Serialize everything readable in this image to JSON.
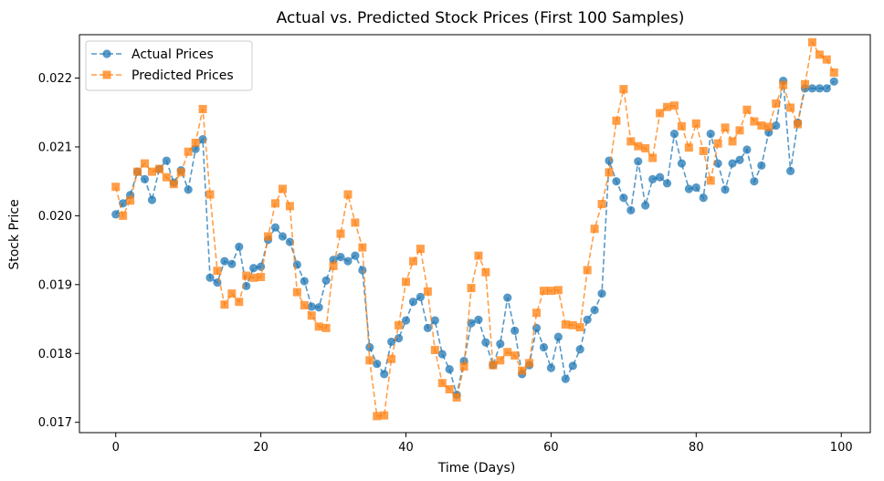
{
  "chart_data": {
    "type": "line",
    "title": "Actual vs. Predicted Stock Prices (First 100 Samples)",
    "xlabel": "Time (Days)",
    "ylabel": "Stock Price",
    "xlim": [
      -5,
      104
    ],
    "ylim": [
      0.01685,
      0.02263
    ],
    "xticks": [
      0,
      20,
      40,
      60,
      80,
      100
    ],
    "yticks": [
      0.017,
      0.018,
      0.019,
      0.02,
      0.021,
      0.022
    ],
    "ytick_labels": [
      "0.017",
      "0.018",
      "0.019",
      "0.020",
      "0.021",
      "0.022"
    ],
    "grid": false,
    "legend_position": "top-left",
    "x": [
      0,
      1,
      2,
      3,
      4,
      5,
      6,
      7,
      8,
      9,
      10,
      11,
      12,
      13,
      14,
      15,
      16,
      17,
      18,
      19,
      20,
      21,
      22,
      23,
      24,
      25,
      26,
      27,
      28,
      29,
      30,
      31,
      32,
      33,
      34,
      35,
      36,
      37,
      38,
      39,
      40,
      41,
      42,
      43,
      44,
      45,
      46,
      47,
      48,
      49,
      50,
      51,
      52,
      53,
      54,
      55,
      56,
      57,
      58,
      59,
      60,
      61,
      62,
      63,
      64,
      65,
      66,
      67,
      68,
      69,
      70,
      71,
      72,
      73,
      74,
      75,
      76,
      77,
      78,
      79,
      80,
      81,
      82,
      83,
      84,
      85,
      86,
      87,
      88,
      89,
      90,
      91,
      92,
      93,
      94,
      95,
      96,
      97,
      98,
      99
    ],
    "series": [
      {
        "name": "Actual Prices",
        "color": "#1f77b4",
        "marker": "circle",
        "values": [
          0.02002,
          0.02018,
          0.0203,
          0.02064,
          0.02053,
          0.02023,
          0.02068,
          0.0208,
          0.02048,
          0.02066,
          0.02038,
          0.02097,
          0.02111,
          0.0191,
          0.01903,
          0.01934,
          0.0193,
          0.01955,
          0.01898,
          0.01924,
          0.01926,
          0.01965,
          0.01983,
          0.0197,
          0.01962,
          0.01929,
          0.01905,
          0.01868,
          0.01867,
          0.01906,
          0.01936,
          0.0194,
          0.01934,
          0.01942,
          0.01921,
          0.01809,
          0.01785,
          0.0177,
          0.01817,
          0.01822,
          0.01848,
          0.01875,
          0.01882,
          0.01837,
          0.01848,
          0.01799,
          0.01777,
          0.0174,
          0.01789,
          0.01844,
          0.01849,
          0.01816,
          0.01783,
          0.01814,
          0.01881,
          0.01833,
          0.0177,
          0.01783,
          0.01837,
          0.01809,
          0.01779,
          0.01824,
          0.01763,
          0.01782,
          0.01806,
          0.01849,
          0.01863,
          0.01887,
          0.0208,
          0.0205,
          0.02026,
          0.02008,
          0.02079,
          0.02015,
          0.02053,
          0.02056,
          0.02047,
          0.02119,
          0.02076,
          0.02039,
          0.02041,
          0.02026,
          0.02119,
          0.02076,
          0.02038,
          0.02076,
          0.02081,
          0.02096,
          0.0205,
          0.02073,
          0.02121,
          0.02131,
          0.02196,
          0.02065,
          0.02135,
          0.02185,
          0.02185,
          0.02185,
          0.02185,
          0.02195
        ]
      },
      {
        "name": "Predicted Prices",
        "color": "#ff7f0e",
        "marker": "square",
        "values": [
          0.02042,
          0.02,
          0.02022,
          0.02064,
          0.02076,
          0.02064,
          0.02068,
          0.02056,
          0.02046,
          0.02063,
          0.02093,
          0.02106,
          0.02155,
          0.02031,
          0.0192,
          0.01871,
          0.01887,
          0.01875,
          0.01913,
          0.0191,
          0.01911,
          0.0197,
          0.02018,
          0.02039,
          0.02014,
          0.01889,
          0.0187,
          0.01855,
          0.01839,
          0.01837,
          0.01927,
          0.01974,
          0.02031,
          0.0199,
          0.01954,
          0.0179,
          0.01709,
          0.0171,
          0.01792,
          0.01841,
          0.01904,
          0.01934,
          0.01952,
          0.0189,
          0.01805,
          0.01757,
          0.01748,
          0.01736,
          0.01781,
          0.01895,
          0.01942,
          0.01918,
          0.01783,
          0.0179,
          0.01802,
          0.01797,
          0.01775,
          0.01786,
          0.01859,
          0.01891,
          0.01891,
          0.01892,
          0.01842,
          0.01841,
          0.01838,
          0.01921,
          0.01981,
          0.02017,
          0.02063,
          0.02138,
          0.02184,
          0.02108,
          0.02101,
          0.02098,
          0.02084,
          0.02149,
          0.02158,
          0.0216,
          0.0213,
          0.02099,
          0.02134,
          0.02094,
          0.02051,
          0.02105,
          0.02128,
          0.02108,
          0.02124,
          0.02154,
          0.02137,
          0.02131,
          0.02129,
          0.02163,
          0.0219,
          0.02157,
          0.02133,
          0.02191,
          0.02252,
          0.02234,
          0.02227,
          0.02208
        ]
      }
    ]
  }
}
